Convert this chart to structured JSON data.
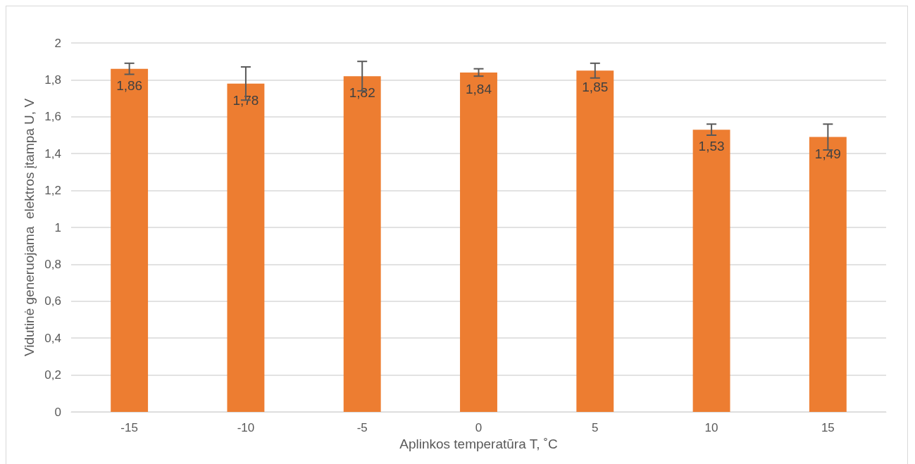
{
  "chart_data": {
    "type": "bar",
    "xlabel": "Aplinkos temperatūra T, ˚C",
    "ylabel": "Vidutinė generuojama  elektros įtampa U, V",
    "categories": [
      "-15",
      "-10",
      "-5",
      "0",
      "5",
      "10",
      "15"
    ],
    "values": [
      1.86,
      1.78,
      1.82,
      1.84,
      1.85,
      1.53,
      1.49
    ],
    "value_labels": [
      "1,86",
      "1,78",
      "1,82",
      "1,84",
      "1,85",
      "1,53",
      "1,49"
    ],
    "errors": [
      0.03,
      0.09,
      0.08,
      0.02,
      0.04,
      0.03,
      0.07
    ],
    "color": "#ed7d31",
    "ylim": [
      0,
      2
    ],
    "yticks": [
      0,
      {
        "value": 0.2,
        "label": "0,2"
      },
      {
        "value": 0.4,
        "label": "0,4"
      },
      {
        "value": 0.6,
        "label": "0,6"
      },
      {
        "value": 0.8,
        "label": "0,8"
      },
      1,
      {
        "value": 1.2,
        "label": "1,2"
      },
      {
        "value": 1.4,
        "label": "1,4"
      },
      {
        "value": 1.6,
        "label": "1,6"
      },
      {
        "value": 1.8,
        "label": "1,8"
      },
      2
    ],
    "grid": "y"
  }
}
